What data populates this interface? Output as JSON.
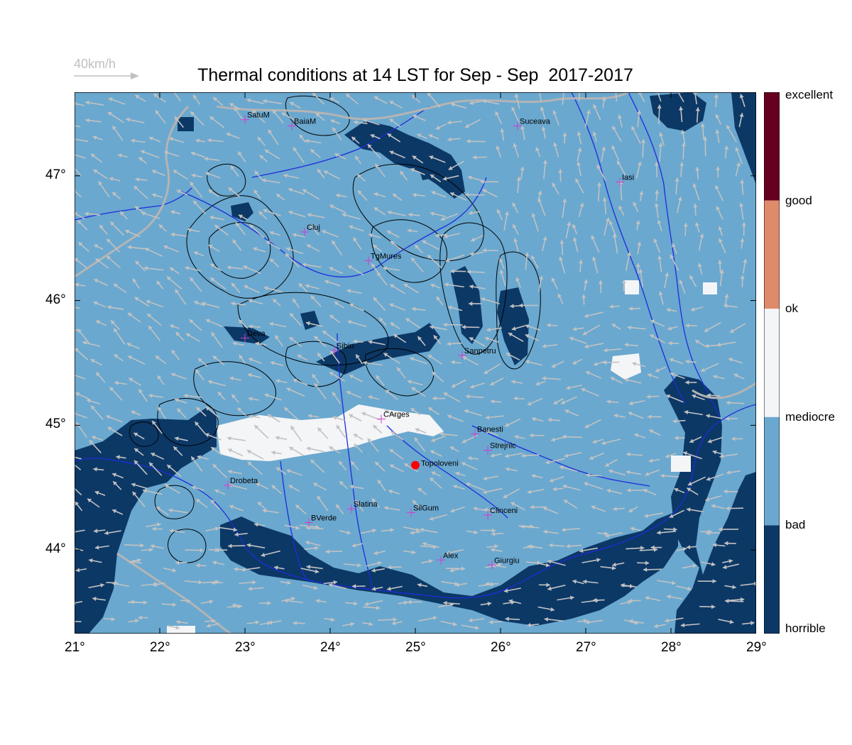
{
  "wind_reference": {
    "label": "40km/h"
  },
  "title": "Thermal conditions at 14 LST for Sep - Sep  2017-2017",
  "axes": {
    "x_ticks": [
      "21°",
      "22°",
      "23°",
      "24°",
      "25°",
      "26°",
      "27°",
      "28°",
      "29°"
    ],
    "y_ticks": [
      "47°",
      "46°",
      "45°",
      "44°"
    ]
  },
  "colorbar": {
    "labels": [
      "excellent",
      "good",
      "ok",
      "mediocre",
      "bad",
      "horrible"
    ],
    "colors": [
      "#67001f",
      "#e08a6c",
      "#f4f5f7",
      "#6aa8cf",
      "#0c3866"
    ]
  },
  "palette": {
    "mediocre": "#6aa8cf",
    "horrible": "#0c3866",
    "ok": "#f4f5f7",
    "rivers": "#1e2cdc",
    "borders": "#b4b4b4",
    "wind_arrows": "#c2c2c2",
    "city_marker": "#d23ad2",
    "highlight_marker": "#ff0000"
  },
  "cities": [
    {
      "name": "SatuM",
      "lon": 23.0,
      "lat": 47.45
    },
    {
      "name": "BaiaM",
      "lon": 23.55,
      "lat": 47.4
    },
    {
      "name": "Suceava",
      "lon": 26.2,
      "lat": 47.4
    },
    {
      "name": "Iasi",
      "lon": 27.4,
      "lat": 46.95
    },
    {
      "name": "Cluj",
      "lon": 23.7,
      "lat": 46.55
    },
    {
      "name": "TgMures",
      "lon": 24.45,
      "lat": 46.32
    },
    {
      "name": "Deva",
      "lon": 23.0,
      "lat": 45.7
    },
    {
      "name": "Sibiu",
      "lon": 24.05,
      "lat": 45.6
    },
    {
      "name": "Sanpetru",
      "lon": 25.55,
      "lat": 45.56
    },
    {
      "name": "CArges",
      "lon": 24.6,
      "lat": 45.05
    },
    {
      "name": "Banesti",
      "lon": 25.7,
      "lat": 44.93
    },
    {
      "name": "Strejnic",
      "lon": 25.85,
      "lat": 44.8
    },
    {
      "name": "Drobeta",
      "lon": 22.8,
      "lat": 44.52
    },
    {
      "name": "Slatina",
      "lon": 24.25,
      "lat": 44.33
    },
    {
      "name": "SilGum",
      "lon": 24.95,
      "lat": 44.3
    },
    {
      "name": "Clinceni",
      "lon": 25.85,
      "lat": 44.28
    },
    {
      "name": "BVerde",
      "lon": 23.75,
      "lat": 44.22
    },
    {
      "name": "Alex",
      "lon": 25.3,
      "lat": 43.92
    },
    {
      "name": "Giurgiu",
      "lon": 25.9,
      "lat": 43.88
    }
  ],
  "highlight": {
    "name": "Topoloveni",
    "lon": 25.0,
    "lat": 44.68
  }
}
